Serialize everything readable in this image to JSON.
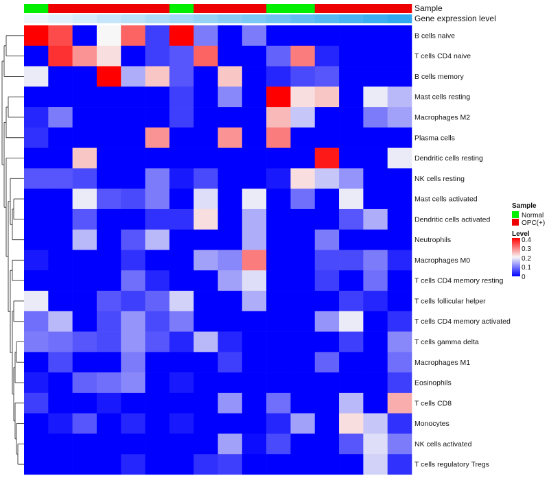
{
  "chart_data": {
    "type": "heatmap",
    "annotation_tracks": [
      {
        "name": "Sample",
        "values": [
          "Normal",
          "OPC(+)",
          "OPC(+)",
          "OPC(+)",
          "OPC(+)",
          "OPC(+)",
          "Normal",
          "OPC(+)",
          "OPC(+)",
          "OPC(+)",
          "Normal",
          "Normal",
          "OPC(+)",
          "OPC(+)",
          "OPC(+)",
          "OPC(+)"
        ]
      },
      {
        "name": "Gene expression level",
        "values": [
          1,
          2,
          3,
          4,
          5,
          6,
          7,
          8,
          9,
          10,
          11,
          12,
          13,
          14,
          15,
          16
        ]
      }
    ],
    "rows": [
      {
        "name": "B cells naive",
        "values": [
          0.4,
          0.34,
          0.0,
          0.2,
          0.32,
          0.05,
          0.4,
          0.1,
          0.0,
          0.1,
          0.0,
          0.0,
          0.0,
          0.0,
          0.0,
          0.0
        ]
      },
      {
        "name": "T cells CD4 naive",
        "values": [
          0.0,
          0.36,
          0.28,
          0.22,
          0.0,
          0.05,
          0.07,
          0.32,
          0.0,
          0.0,
          0.08,
          0.3,
          0.03,
          0.0,
          0.0,
          0.0
        ]
      },
      {
        "name": "B cells memory",
        "values": [
          0.19,
          0.0,
          0.0,
          0.4,
          0.14,
          0.24,
          0.07,
          0.0,
          0.24,
          0.0,
          0.03,
          0.06,
          0.07,
          0.0,
          0.0,
          0.0
        ]
      },
      {
        "name": "Mast cells resting",
        "values": [
          0.0,
          0.0,
          0.0,
          0.0,
          0.0,
          0.0,
          0.05,
          0.0,
          0.11,
          0.0,
          0.4,
          0.22,
          0.24,
          0.0,
          0.19,
          0.15
        ]
      },
      {
        "name": "Macrophages M2",
        "values": [
          0.03,
          0.1,
          0.0,
          0.0,
          0.0,
          0.0,
          0.05,
          0.0,
          0.0,
          0.0,
          0.25,
          0.16,
          0.0,
          0.0,
          0.1,
          0.13
        ]
      },
      {
        "name": "Plasma cells",
        "values": [
          0.04,
          0.0,
          0.0,
          0.0,
          0.0,
          0.28,
          0.0,
          0.0,
          0.28,
          0.0,
          0.3,
          0.0,
          0.0,
          0.0,
          0.0,
          0.0
        ]
      },
      {
        "name": "Dendritic cells resting",
        "values": [
          0.0,
          0.0,
          0.24,
          0.0,
          0.0,
          0.0,
          0.0,
          0.0,
          0.0,
          0.0,
          0.0,
          0.0,
          0.38,
          0.0,
          0.0,
          0.19
        ]
      },
      {
        "name": "NK cells resting",
        "values": [
          0.07,
          0.07,
          0.06,
          0.0,
          0.0,
          0.1,
          0.02,
          0.06,
          0.0,
          0.0,
          0.02,
          0.22,
          0.16,
          0.12,
          0.0,
          0.0
        ]
      },
      {
        "name": "Mast cells activated",
        "values": [
          0.0,
          0.0,
          0.19,
          0.07,
          0.06,
          0.1,
          0.0,
          0.18,
          0.0,
          0.19,
          0.0,
          0.09,
          0.0,
          0.19,
          0.0,
          0.0
        ]
      },
      {
        "name": "Dendritic cells activated",
        "values": [
          0.0,
          0.0,
          0.07,
          0.0,
          0.0,
          0.04,
          0.04,
          0.22,
          0.0,
          0.14,
          0.0,
          0.0,
          0.0,
          0.07,
          0.14,
          0.0
        ]
      },
      {
        "name": "Neutrophils",
        "values": [
          0.0,
          0.0,
          0.15,
          0.0,
          0.07,
          0.15,
          0.0,
          0.0,
          0.0,
          0.14,
          0.0,
          0.0,
          0.1,
          0.0,
          0.0,
          0.0
        ]
      },
      {
        "name": "Macrophages M0",
        "values": [
          0.02,
          0.0,
          0.0,
          0.0,
          0.04,
          0.0,
          0.0,
          0.13,
          0.11,
          0.3,
          0.0,
          0.0,
          0.06,
          0.06,
          0.1,
          0.03
        ]
      },
      {
        "name": "T cells CD4 memory resting",
        "values": [
          0.0,
          0.0,
          0.0,
          0.0,
          0.09,
          0.03,
          0.0,
          0.0,
          0.13,
          0.18,
          0.0,
          0.0,
          0.05,
          0.0,
          0.09,
          0.0
        ]
      },
      {
        "name": "T cells follicular helper",
        "values": [
          0.19,
          0.0,
          0.0,
          0.07,
          0.05,
          0.08,
          0.17,
          0.0,
          0.0,
          0.14,
          0.0,
          0.0,
          0.0,
          0.05,
          0.03,
          0.0
        ]
      },
      {
        "name": "T cells CD4 memory activated",
        "values": [
          0.09,
          0.15,
          0.0,
          0.06,
          0.12,
          0.06,
          0.1,
          0.0,
          0.0,
          0.0,
          0.0,
          0.0,
          0.12,
          0.19,
          0.0,
          0.04
        ]
      },
      {
        "name": "T cells gamma delta",
        "values": [
          0.1,
          0.09,
          0.07,
          0.06,
          0.12,
          0.07,
          0.03,
          0.15,
          0.03,
          0.0,
          0.0,
          0.0,
          0.0,
          0.05,
          0.0,
          0.11
        ]
      },
      {
        "name": "Macrophages M1",
        "values": [
          0.0,
          0.06,
          0.0,
          0.0,
          0.1,
          0.0,
          0.0,
          0.0,
          0.05,
          0.0,
          0.0,
          0.0,
          0.08,
          0.0,
          0.0,
          0.09
        ]
      },
      {
        "name": "Eosinophils",
        "values": [
          0.02,
          0.0,
          0.08,
          0.09,
          0.11,
          0.0,
          0.02,
          0.0,
          0.0,
          0.0,
          0.0,
          0.0,
          0.0,
          0.0,
          0.0,
          0.05
        ]
      },
      {
        "name": "T cells CD8",
        "values": [
          0.05,
          0.0,
          0.0,
          0.02,
          0.0,
          0.0,
          0.0,
          0.0,
          0.12,
          0.0,
          0.09,
          0.0,
          0.0,
          0.15,
          0.0,
          0.26
        ]
      },
      {
        "name": "Monocytes",
        "values": [
          0.0,
          0.02,
          0.07,
          0.0,
          0.03,
          0.0,
          0.02,
          0.0,
          0.0,
          0.0,
          0.03,
          0.13,
          0.0,
          0.22,
          0.16,
          0.04
        ]
      },
      {
        "name": "NK cells activated",
        "values": [
          0.0,
          0.0,
          0.0,
          0.0,
          0.0,
          0.0,
          0.0,
          0.0,
          0.13,
          0.01,
          0.06,
          0.0,
          0.0,
          0.07,
          0.18,
          0.1
        ]
      },
      {
        "name": "T cells regulatory  Tregs",
        "values": [
          0.0,
          0.0,
          0.0,
          0.0,
          0.03,
          0.0,
          0.0,
          0.04,
          0.05,
          0.0,
          0.0,
          0.0,
          0.0,
          0.0,
          0.17,
          0.04
        ]
      }
    ],
    "legend": {
      "sample": {
        "title": "Sample",
        "items": [
          {
            "label": "Normal",
            "color": "#00ee00"
          },
          {
            "label": "OPC(+)",
            "color": "#ee0000"
          }
        ]
      },
      "level": {
        "title": "Level",
        "ticks": [
          "0.4",
          "0.3",
          "0.2",
          "0.1",
          "0"
        ],
        "range": [
          0,
          0.4
        ]
      }
    },
    "colors": {
      "low": "#0000ff",
      "mid": "#f7f7f7",
      "high": "#ff0000",
      "normal": "#00ee00",
      "opc": "#ee0000",
      "expr_low": "#eef6fc",
      "expr_high": "#2fa8f0"
    }
  }
}
